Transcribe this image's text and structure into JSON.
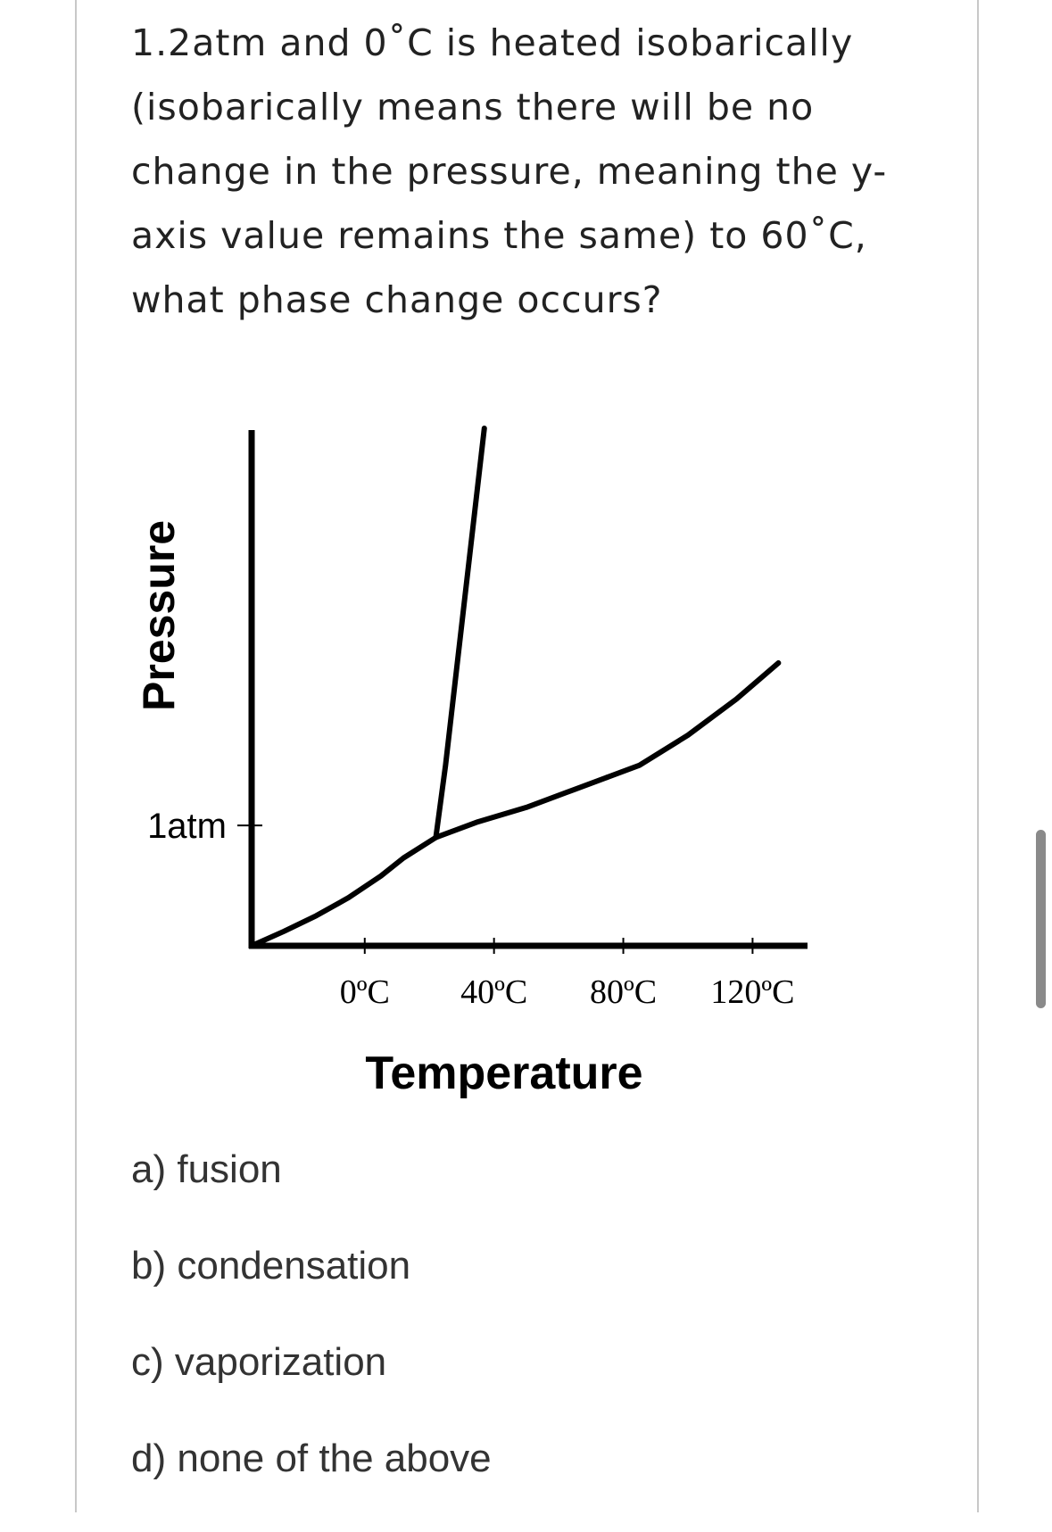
{
  "question": {
    "text": "1.2atm and 0˚C is heated isobarically (isobarically means there will be no change in the pressure, meaning the y-axis value remains the same) to 60˚C, what phase change occurs?"
  },
  "chart_data": {
    "type": "line",
    "title": "",
    "xlabel": "Temperature",
    "ylabel": "Pressure",
    "x_ticks": [
      "0ºC",
      "40ºC",
      "80ºC",
      "120ºC"
    ],
    "x_tick_values": [
      0,
      40,
      80,
      120
    ],
    "y_ticks": [
      "1atm"
    ],
    "y_tick_values": [
      1.0
    ],
    "xlim": [
      -35,
      137
    ],
    "ylim": [
      0,
      4.3
    ],
    "grid": false,
    "legend": "none",
    "series": [
      {
        "x": [
          -35,
          -25,
          -15,
          -5,
          5,
          12,
          22
        ],
        "y": [
          0.0,
          0.12,
          0.25,
          0.4,
          0.58,
          0.73,
          0.9
        ]
      },
      {
        "x": [
          22,
          35,
          50,
          65,
          75
        ],
        "y": [
          0.9,
          1.03,
          1.15,
          1.3,
          1.4
        ]
      },
      {
        "x": [
          75,
          85,
          100,
          115,
          128
        ],
        "y": [
          1.4,
          1.5,
          1.75,
          2.05,
          2.35
        ]
      },
      {
        "x": [
          22,
          25,
          28,
          31,
          34,
          37
        ],
        "y": [
          0.9,
          1.5,
          2.2,
          2.9,
          3.6,
          4.3
        ]
      }
    ]
  },
  "options": [
    {
      "label": "a) fusion"
    },
    {
      "label": "b) condensation"
    },
    {
      "label": "c) vaporization"
    },
    {
      "label": "d) none of the above"
    }
  ]
}
